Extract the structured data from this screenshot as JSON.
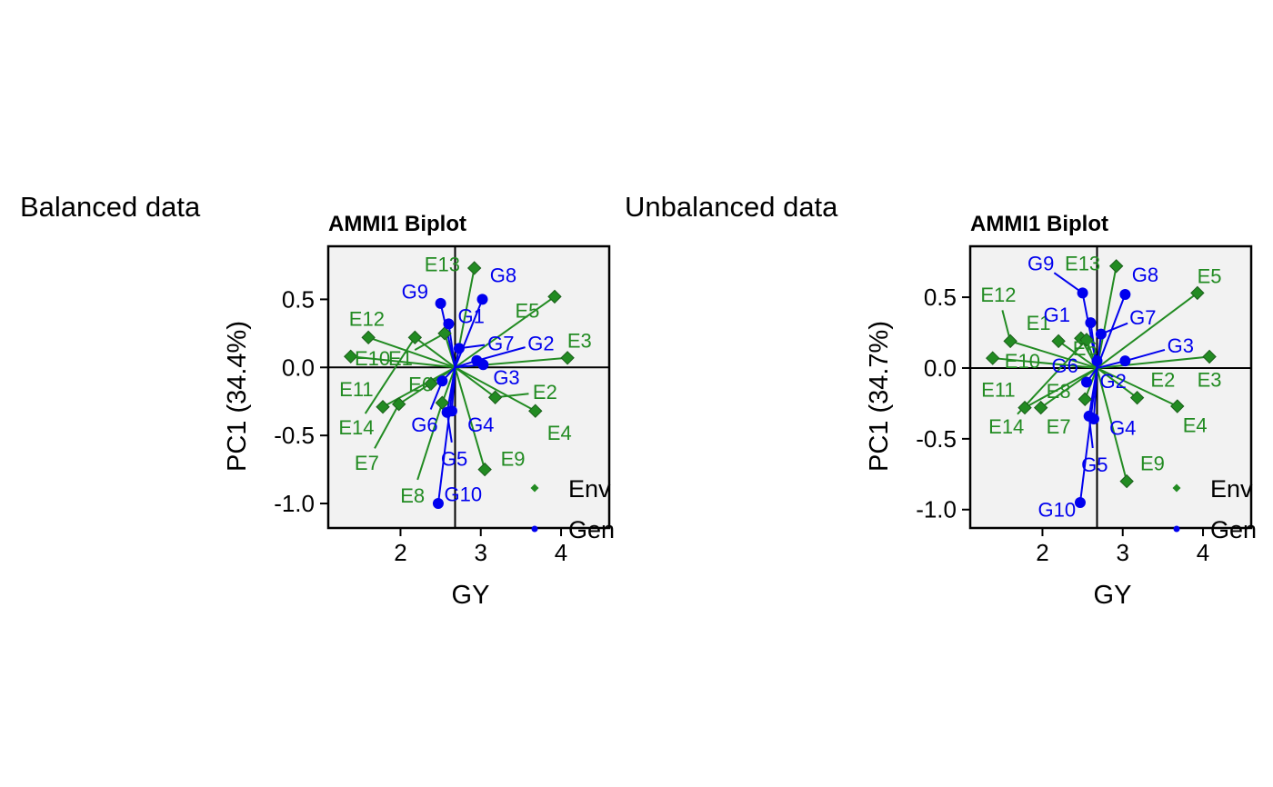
{
  "captions": {
    "left": "Balanced data",
    "right": "Unbalanced data"
  },
  "colors": {
    "env": "#228B22",
    "gen": "#0000EE",
    "panel_bg": "#F2F2F2",
    "axis": "#000000"
  },
  "chart_data": [
    {
      "type": "scatter",
      "subtype": "biplot",
      "title": "AMMI1 Biplot",
      "xlabel": "GY",
      "ylabel": "PC1 (34.4%)",
      "xlim": [
        1.1,
        4.6
      ],
      "ylim": [
        -1.18,
        0.89
      ],
      "xticks": [
        2,
        3,
        4
      ],
      "xtick_labels": [
        "2",
        "3",
        "4"
      ],
      "yticks": [
        -1.0,
        -0.5,
        0.0,
        0.5
      ],
      "ytick_labels": [
        "-1.0",
        "-0.5",
        "0.0",
        "0.5"
      ],
      "origin": [
        2.68,
        0.0
      ],
      "legend": {
        "position": "bottom-right",
        "entries": [
          "Env",
          "Gen"
        ]
      },
      "series": [
        {
          "name": "Env",
          "marker": "diamond",
          "points": [
            {
              "label": "E1",
              "x": 2.55,
              "y": 0.25,
              "lx": 2.0,
              "ly": 0.07
            },
            {
              "label": "E2",
              "x": 3.18,
              "y": -0.22,
              "lx": 3.8,
              "ly": -0.18
            },
            {
              "label": "E3",
              "x": 4.08,
              "y": 0.07,
              "lx": 4.23,
              "ly": 0.2
            },
            {
              "label": "E4",
              "x": 3.68,
              "y": -0.32,
              "lx": 3.98,
              "ly": -0.48
            },
            {
              "label": "E5",
              "x": 3.92,
              "y": 0.52,
              "lx": 3.58,
              "ly": 0.42
            },
            {
              "label": "E6",
              "x": 2.38,
              "y": -0.12,
              "lx": 2.25,
              "ly": -0.12
            },
            {
              "label": "E7",
              "x": 1.98,
              "y": -0.27,
              "lx": 1.58,
              "ly": -0.7
            },
            {
              "label": "E8",
              "x": 2.52,
              "y": -0.26,
              "lx": 2.15,
              "ly": -0.94
            },
            {
              "label": "E9",
              "x": 3.05,
              "y": -0.75,
              "lx": 3.4,
              "ly": -0.67
            },
            {
              "label": "E10",
              "x": 1.38,
              "y": 0.08,
              "lx": 1.65,
              "ly": 0.07
            },
            {
              "label": "E11",
              "x": 1.78,
              "y": -0.29,
              "lx": 1.45,
              "ly": -0.16
            },
            {
              "label": "E12",
              "x": 1.6,
              "y": 0.22,
              "lx": 1.58,
              "ly": 0.36
            },
            {
              "label": "E13",
              "x": 2.92,
              "y": 0.73,
              "lx": 2.52,
              "ly": 0.76
            },
            {
              "label": "E14",
              "x": 2.18,
              "y": 0.22,
              "lx": 1.45,
              "ly": -0.44
            }
          ]
        },
        {
          "name": "Gen",
          "marker": "circle",
          "points": [
            {
              "label": "G1",
              "x": 2.6,
              "y": 0.32,
              "lx": 2.88,
              "ly": 0.38
            },
            {
              "label": "G2",
              "x": 2.95,
              "y": 0.05,
              "lx": 3.75,
              "ly": 0.18
            },
            {
              "label": "G3",
              "x": 3.03,
              "y": 0.02,
              "lx": 3.32,
              "ly": -0.07
            },
            {
              "label": "G4",
              "x": 2.64,
              "y": -0.32,
              "lx": 3.0,
              "ly": -0.42
            },
            {
              "label": "G5",
              "x": 2.58,
              "y": -0.33,
              "lx": 2.67,
              "ly": -0.67
            },
            {
              "label": "G6",
              "x": 2.52,
              "y": -0.1,
              "lx": 2.3,
              "ly": -0.42
            },
            {
              "label": "G7",
              "x": 2.73,
              "y": 0.14,
              "lx": 3.25,
              "ly": 0.18
            },
            {
              "label": "G8",
              "x": 3.02,
              "y": 0.5,
              "lx": 3.28,
              "ly": 0.68
            },
            {
              "label": "G9",
              "x": 2.5,
              "y": 0.47,
              "lx": 2.18,
              "ly": 0.56
            },
            {
              "label": "G10",
              "x": 2.47,
              "y": -1.0,
              "lx": 2.78,
              "ly": -0.93
            }
          ]
        }
      ]
    },
    {
      "type": "scatter",
      "subtype": "biplot",
      "title": "AMMI1 Biplot",
      "xlabel": "GY",
      "ylabel": "PC1 (34.7%)",
      "xlim": [
        1.1,
        4.6
      ],
      "ylim": [
        -1.13,
        0.86
      ],
      "xticks": [
        2,
        3,
        4
      ],
      "xtick_labels": [
        "2",
        "3",
        "4"
      ],
      "yticks": [
        -1.0,
        -0.5,
        0.0,
        0.5
      ],
      "ytick_labels": [
        "-1.0",
        "-0.5",
        "0.0",
        "0.5"
      ],
      "origin": [
        2.68,
        0.0
      ],
      "legend": {
        "position": "bottom-right",
        "entries": [
          "Env",
          "Gen"
        ]
      },
      "series": [
        {
          "name": "Env",
          "marker": "diamond",
          "points": [
            {
              "label": "E1",
              "x": 2.2,
              "y": 0.19,
              "lx": 1.95,
              "ly": 0.32
            },
            {
              "label": "E2",
              "x": 3.18,
              "y": -0.21,
              "lx": 3.5,
              "ly": -0.08
            },
            {
              "label": "E3",
              "x": 4.08,
              "y": 0.08,
              "lx": 4.08,
              "ly": -0.08
            },
            {
              "label": "E4",
              "x": 3.68,
              "y": -0.27,
              "lx": 3.9,
              "ly": -0.4
            },
            {
              "label": "E5",
              "x": 3.93,
              "y": 0.53,
              "lx": 4.08,
              "ly": 0.65
            },
            {
              "label": "E6",
              "x": 2.48,
              "y": 0.21,
              "lx": 2.53,
              "ly": 0.14
            },
            {
              "label": "E7",
              "x": 1.98,
              "y": -0.28,
              "lx": 2.2,
              "ly": -0.41
            },
            {
              "label": "E8",
              "x": 2.53,
              "y": -0.22,
              "lx": 2.2,
              "ly": -0.16
            },
            {
              "label": "E9",
              "x": 3.05,
              "y": -0.8,
              "lx": 3.37,
              "ly": -0.67
            },
            {
              "label": "E10",
              "x": 1.38,
              "y": 0.07,
              "lx": 1.75,
              "ly": 0.05
            },
            {
              "label": "E11",
              "x": 1.78,
              "y": -0.28,
              "lx": 1.45,
              "ly": -0.15
            },
            {
              "label": "E12",
              "x": 1.6,
              "y": 0.19,
              "lx": 1.45,
              "ly": 0.52
            },
            {
              "label": "E13",
              "x": 2.92,
              "y": 0.72,
              "lx": 2.5,
              "ly": 0.74
            },
            {
              "label": "E14",
              "x": 2.55,
              "y": 0.2,
              "lx": 1.55,
              "ly": -0.41
            }
          ]
        },
        {
          "name": "Gen",
          "marker": "circle",
          "points": [
            {
              "label": "G1",
              "x": 2.6,
              "y": 0.32,
              "lx": 2.18,
              "ly": 0.38
            },
            {
              "label": "G2",
              "x": 2.68,
              "y": 0.05,
              "lx": 2.88,
              "ly": -0.09
            },
            {
              "label": "G3",
              "x": 3.03,
              "y": 0.05,
              "lx": 3.72,
              "ly": 0.16
            },
            {
              "label": "G4",
              "x": 2.64,
              "y": -0.36,
              "lx": 3.0,
              "ly": -0.42
            },
            {
              "label": "G5",
              "x": 2.58,
              "y": -0.34,
              "lx": 2.65,
              "ly": -0.68
            },
            {
              "label": "G6",
              "x": 2.55,
              "y": -0.1,
              "lx": 2.28,
              "ly": 0.02
            },
            {
              "label": "G7",
              "x": 2.73,
              "y": 0.24,
              "lx": 3.25,
              "ly": 0.36
            },
            {
              "label": "G8",
              "x": 3.03,
              "y": 0.52,
              "lx": 3.28,
              "ly": 0.66
            },
            {
              "label": "G9",
              "x": 2.5,
              "y": 0.53,
              "lx": 1.98,
              "ly": 0.74
            },
            {
              "label": "G10",
              "x": 2.47,
              "y": -0.95,
              "lx": 2.18,
              "ly": -1.0
            }
          ]
        }
      ]
    }
  ]
}
